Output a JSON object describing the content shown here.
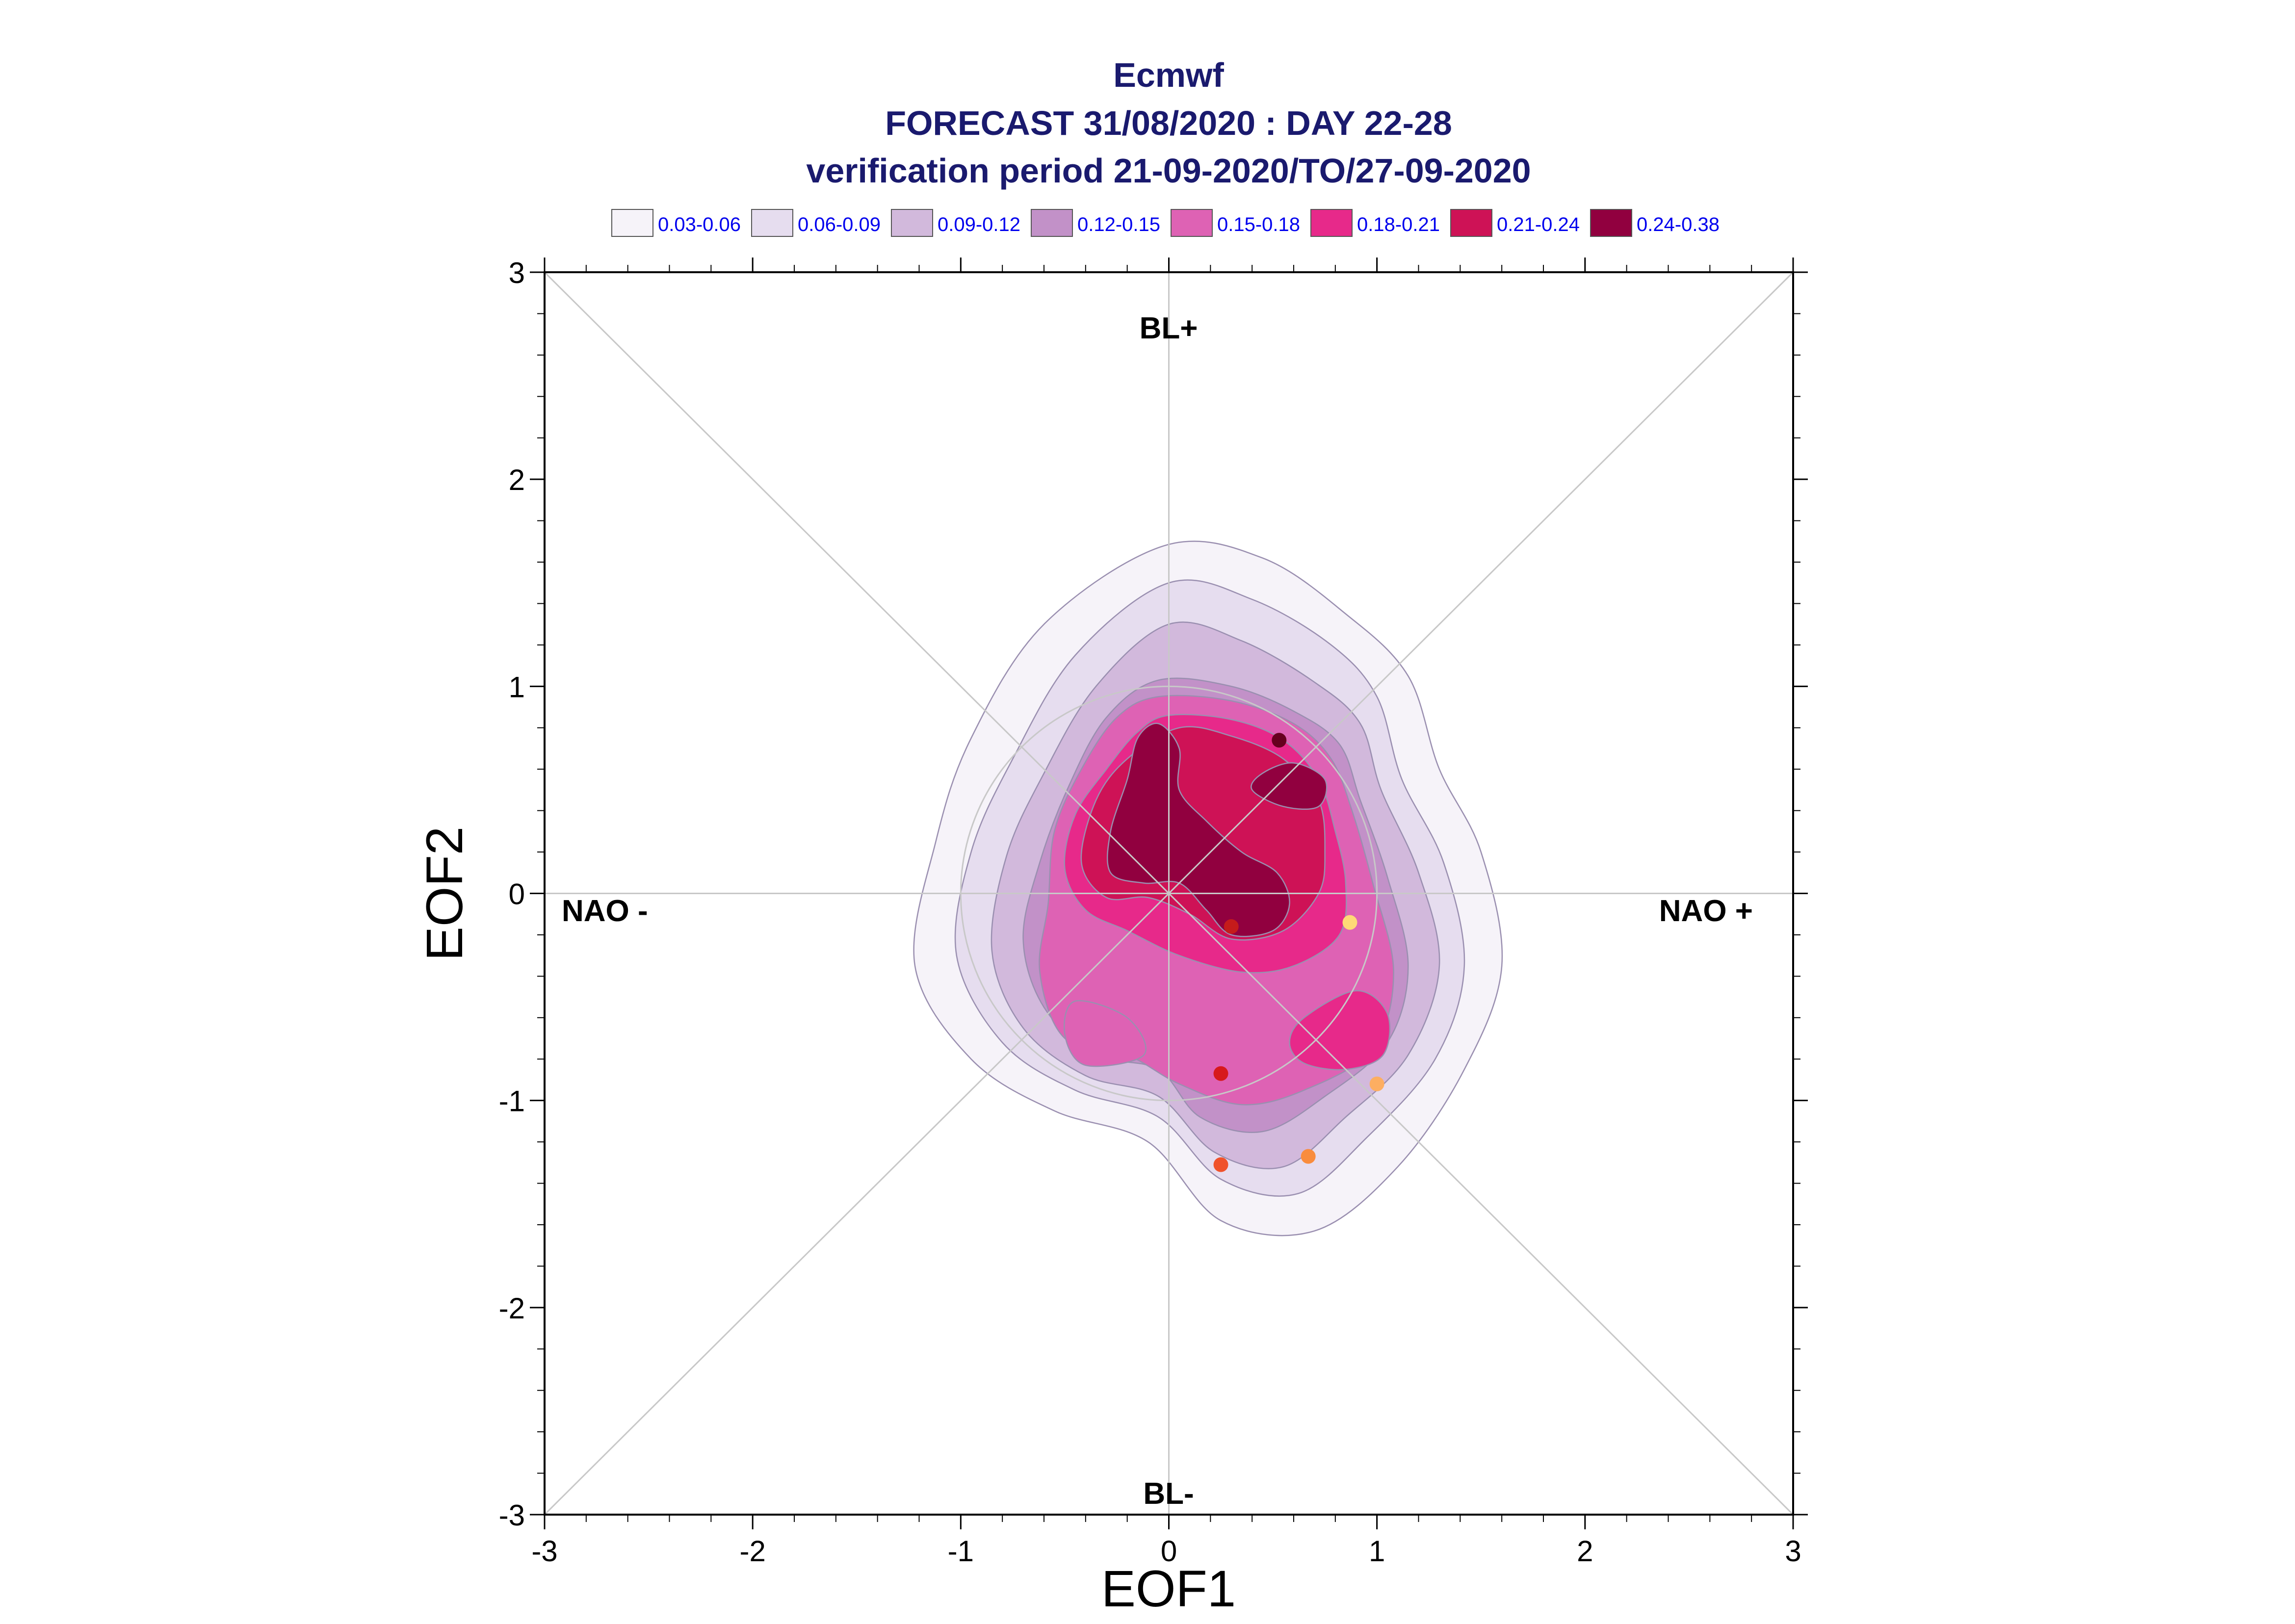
{
  "title_lines": [
    "Ecmwf",
    "FORECAST 31/08/2020 : DAY 22-28",
    "verification period 21-09-2020/TO/27-09-2020"
  ],
  "colors": {
    "title": "#1a1a6e",
    "legend_text": "#0000ee",
    "contour_line": "#9a8fb0",
    "axes": "#000000",
    "guide_lines": "#c8c8c8"
  },
  "legend": [
    {
      "label": "0.03-0.06",
      "color": "#f6f3f9"
    },
    {
      "label": "0.06-0.09",
      "color": "#e6ddef"
    },
    {
      "label": "0.09-0.12",
      "color": "#d2b9dc"
    },
    {
      "label": "0.12-0.15",
      "color": "#c291c8"
    },
    {
      "label": "0.15-0.18",
      "color": "#de62b4"
    },
    {
      "label": "0.18-0.21",
      "color": "#e7298a"
    },
    {
      "label": "0.21-0.24",
      "color": "#ce1256"
    },
    {
      "label": "0.24-0.38",
      "color": "#91003f"
    }
  ],
  "regime_labels": {
    "top": "BL+",
    "bottom": "BL-",
    "left": "NAO -",
    "right": "NAO +"
  },
  "chart_data": {
    "type": "scatter",
    "xlabel": "EOF1",
    "ylabel": "EOF2",
    "xlim": [
      -3,
      3
    ],
    "ylim": [
      -3,
      3
    ],
    "xticks": [
      -3,
      -2,
      -1,
      0,
      1,
      2,
      3
    ],
    "yticks": [
      -3,
      -2,
      -1,
      0,
      1,
      2,
      3
    ],
    "grid": false,
    "reference_circle_radius": 1,
    "density_contours": [
      {
        "level": "0.03-0.06",
        "points": [
          [
            -0.02,
            1.68
          ],
          [
            0.45,
            1.62
          ],
          [
            0.85,
            1.35
          ],
          [
            1.15,
            1.05
          ],
          [
            1.3,
            0.6
          ],
          [
            1.5,
            0.2
          ],
          [
            1.6,
            -0.35
          ],
          [
            1.42,
            -0.85
          ],
          [
            1.1,
            -1.32
          ],
          [
            0.7,
            -1.63
          ],
          [
            0.25,
            -1.58
          ],
          [
            -0.1,
            -1.2
          ],
          [
            -0.55,
            -1.05
          ],
          [
            -0.95,
            -0.8
          ],
          [
            -1.22,
            -0.35
          ],
          [
            -1.12,
            0.25
          ],
          [
            -0.95,
            0.75
          ],
          [
            -0.6,
            1.3
          ]
        ]
      },
      {
        "level": "0.06-0.09",
        "points": [
          [
            0.0,
            1.5
          ],
          [
            0.4,
            1.42
          ],
          [
            0.78,
            1.2
          ],
          [
            1.0,
            0.95
          ],
          [
            1.12,
            0.55
          ],
          [
            1.32,
            0.15
          ],
          [
            1.42,
            -0.35
          ],
          [
            1.28,
            -0.8
          ],
          [
            0.95,
            -1.18
          ],
          [
            0.62,
            -1.45
          ],
          [
            0.25,
            -1.38
          ],
          [
            -0.05,
            -1.08
          ],
          [
            -0.45,
            -0.95
          ],
          [
            -0.8,
            -0.72
          ],
          [
            -1.02,
            -0.3
          ],
          [
            -0.95,
            0.2
          ],
          [
            -0.75,
            0.65
          ],
          [
            -0.45,
            1.15
          ]
        ]
      },
      {
        "level": "0.09-0.12",
        "points": [
          [
            0.0,
            1.3
          ],
          [
            0.35,
            1.22
          ],
          [
            0.7,
            1.02
          ],
          [
            0.92,
            0.82
          ],
          [
            1.02,
            0.5
          ],
          [
            1.2,
            0.1
          ],
          [
            1.3,
            -0.35
          ],
          [
            1.15,
            -0.78
          ],
          [
            0.85,
            -1.08
          ],
          [
            0.55,
            -1.32
          ],
          [
            0.22,
            -1.25
          ],
          [
            -0.05,
            -0.98
          ],
          [
            -0.4,
            -0.88
          ],
          [
            -0.7,
            -0.65
          ],
          [
            -0.85,
            -0.28
          ],
          [
            -0.78,
            0.18
          ],
          [
            -0.6,
            0.58
          ],
          [
            -0.35,
            1.0
          ]
        ]
      },
      {
        "level": "0.12-0.15",
        "points": [
          [
            -0.05,
            1.03
          ],
          [
            0.3,
            1.0
          ],
          [
            0.6,
            0.88
          ],
          [
            0.82,
            0.72
          ],
          [
            0.92,
            0.45
          ],
          [
            1.05,
            0.08
          ],
          [
            1.15,
            -0.35
          ],
          [
            1.05,
            -0.72
          ],
          [
            0.75,
            -0.98
          ],
          [
            0.45,
            -1.15
          ],
          [
            0.15,
            -1.08
          ],
          [
            -0.05,
            -0.85
          ],
          [
            -0.35,
            -0.78
          ],
          [
            -0.6,
            -0.55
          ],
          [
            -0.7,
            -0.22
          ],
          [
            -0.62,
            0.15
          ],
          [
            -0.48,
            0.52
          ],
          [
            -0.3,
            0.85
          ]
        ]
      },
      {
        "level": "0.15-0.18",
        "points": [
          [
            -0.05,
            0.95
          ],
          [
            0.3,
            0.93
          ],
          [
            0.6,
            0.82
          ],
          [
            0.78,
            0.65
          ],
          [
            0.88,
            0.4
          ],
          [
            0.98,
            0.05
          ],
          [
            1.08,
            -0.38
          ],
          [
            0.98,
            -0.75
          ],
          [
            0.65,
            -0.95
          ],
          [
            0.35,
            -1.02
          ],
          [
            0.05,
            -0.92
          ],
          [
            -0.2,
            -0.78
          ],
          [
            -0.5,
            -0.7
          ],
          [
            -0.62,
            -0.38
          ],
          [
            -0.58,
            -0.05
          ],
          [
            -0.55,
            0.3
          ],
          [
            -0.42,
            0.6
          ],
          [
            -0.25,
            0.85
          ]
        ]
      },
      {
        "level": "0.18-0.21",
        "points": [
          [
            0.0,
            0.86
          ],
          [
            0.3,
            0.84
          ],
          [
            0.55,
            0.74
          ],
          [
            0.72,
            0.55
          ],
          [
            0.8,
            0.3
          ],
          [
            0.85,
            0.05
          ],
          [
            0.82,
            -0.2
          ],
          [
            0.6,
            -0.35
          ],
          [
            0.35,
            -0.38
          ],
          [
            0.05,
            -0.3
          ],
          [
            -0.2,
            -0.18
          ],
          [
            -0.4,
            -0.08
          ],
          [
            -0.5,
            0.12
          ],
          [
            -0.45,
            0.38
          ],
          [
            -0.3,
            0.6
          ],
          [
            -0.15,
            0.78
          ]
        ]
      },
      {
        "level": "0.18-0.21",
        "points": [
          [
            0.65,
            -0.6
          ],
          [
            0.9,
            -0.47
          ],
          [
            1.05,
            -0.58
          ],
          [
            1.03,
            -0.78
          ],
          [
            0.85,
            -0.85
          ],
          [
            0.65,
            -0.82
          ],
          [
            0.58,
            -0.72
          ]
        ]
      },
      {
        "level": "0.21-0.24",
        "points": [
          [
            0.05,
            0.8
          ],
          [
            0.3,
            0.76
          ],
          [
            0.55,
            0.65
          ],
          [
            0.72,
            0.45
          ],
          [
            0.75,
            0.2
          ],
          [
            0.72,
            0.0
          ],
          [
            0.55,
            -0.18
          ],
          [
            0.3,
            -0.22
          ],
          [
            0.1,
            -0.1
          ],
          [
            -0.1,
            -0.02
          ],
          [
            -0.3,
            -0.02
          ],
          [
            -0.42,
            0.15
          ],
          [
            -0.35,
            0.45
          ],
          [
            -0.2,
            0.65
          ]
        ]
      },
      {
        "level": "0.24-0.38",
        "points": [
          [
            -0.05,
            0.82
          ],
          [
            0.05,
            0.7
          ],
          [
            0.05,
            0.5
          ],
          [
            0.18,
            0.35
          ],
          [
            0.35,
            0.2
          ],
          [
            0.52,
            0.1
          ],
          [
            0.58,
            -0.05
          ],
          [
            0.5,
            -0.18
          ],
          [
            0.3,
            -0.2
          ],
          [
            0.18,
            -0.08
          ],
          [
            0.05,
            0.05
          ],
          [
            -0.12,
            0.05
          ],
          [
            -0.28,
            0.1
          ],
          [
            -0.28,
            0.3
          ],
          [
            -0.2,
            0.55
          ],
          [
            -0.15,
            0.75
          ]
        ]
      },
      {
        "level": "0.24-0.38",
        "points": [
          [
            0.45,
            0.58
          ],
          [
            0.6,
            0.63
          ],
          [
            0.75,
            0.55
          ],
          [
            0.72,
            0.42
          ],
          [
            0.55,
            0.42
          ],
          [
            0.4,
            0.5
          ]
        ]
      },
      {
        "level": "0.15-0.18",
        "points": [
          [
            -0.45,
            -0.52
          ],
          [
            -0.2,
            -0.6
          ],
          [
            -0.12,
            -0.78
          ],
          [
            -0.4,
            -0.83
          ],
          [
            -0.5,
            -0.68
          ]
        ]
      }
    ],
    "points": [
      {
        "x": 0.53,
        "y": 0.74,
        "color": "#67001f"
      },
      {
        "x": 0.3,
        "y": -0.16,
        "color": "#c51b1b"
      },
      {
        "x": 0.87,
        "y": -0.14,
        "color": "#fed976"
      },
      {
        "x": 0.25,
        "y": -0.87,
        "color": "#d7191c"
      },
      {
        "x": 1.0,
        "y": -0.92,
        "color": "#fdae61"
      },
      {
        "x": 0.67,
        "y": -1.27,
        "color": "#f98c3d"
      },
      {
        "x": 0.25,
        "y": -1.31,
        "color": "#f0522b"
      }
    ]
  }
}
